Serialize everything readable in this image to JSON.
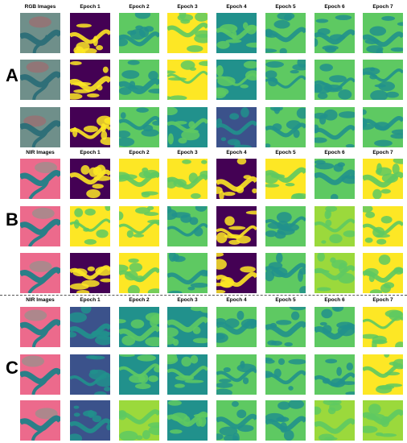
{
  "colors": {
    "dark_purple": "#440154",
    "blue": "#3b528b",
    "teal": "#21918c",
    "green": "#5ec962",
    "light_green": "#9bd93c",
    "yellow": "#fde725",
    "rgb_base": "#6f8f8a",
    "rgb_river": "#2f6f78",
    "rgb_land": "#9a6f72",
    "nir_base": "#ec6a8c",
    "nir_river": "#2a7f88",
    "nir_land": "#9e8f8c"
  },
  "sections": [
    {
      "letter": "A",
      "headers": [
        "RGB Images",
        "Epoch 1",
        "Epoch 2",
        "Epoch 3",
        "Epoch 4",
        "Epoch 5",
        "Epoch 6",
        "Epoch 7"
      ],
      "input_type": "rgb",
      "rows": [
        [
          "dark_purple",
          "green",
          "yellow",
          "teal",
          "green",
          "green",
          "green"
        ],
        [
          "dark_purple",
          "green",
          "yellow",
          "teal",
          "green",
          "green",
          "green"
        ],
        [
          "dark_purple",
          "green",
          "teal",
          "blue",
          "green",
          "green",
          "green"
        ]
      ]
    },
    {
      "letter": "B",
      "headers": [
        "NIR Images",
        "Epoch 1",
        "Epoch 2",
        "Epoch 3",
        "Epoch 4",
        "Epoch 5",
        "Epoch 6",
        "Epoch 7"
      ],
      "input_type": "nir",
      "rows": [
        [
          "dark_purple",
          "yellow",
          "yellow",
          "dark_purple",
          "yellow",
          "green",
          "yellow"
        ],
        [
          "yellow",
          "yellow",
          "green",
          "dark_purple",
          "green",
          "light_green",
          "yellow"
        ],
        [
          "dark_purple",
          "yellow",
          "green",
          "dark_purple",
          "green",
          "light_green",
          "yellow"
        ]
      ]
    },
    {
      "letter": "C",
      "headers": [
        "NIR Images",
        "Epoch 1",
        "Epoch 2",
        "Epoch 3",
        "Epoch 4",
        "Epoch 5",
        "Epoch 6",
        "Epoch 7"
      ],
      "input_type": "nir",
      "rows": [
        [
          "blue",
          "teal",
          "teal",
          "green",
          "green",
          "green",
          "yellow"
        ],
        [
          "blue",
          "teal",
          "teal",
          "green",
          "green",
          "green",
          "yellow"
        ],
        [
          "blue",
          "light_green",
          "teal",
          "green",
          "green",
          "light_green",
          "light_green"
        ]
      ]
    }
  ]
}
